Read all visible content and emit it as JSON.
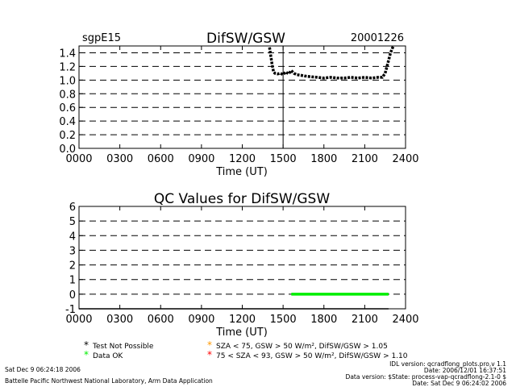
{
  "header": {
    "site": "sgpE15",
    "date": "20001226"
  },
  "chart_data": [
    {
      "type": "line",
      "title": "DifSW/GSW",
      "xlabel": "Time (UT)",
      "ylabel": "",
      "xlim": [
        0,
        2400
      ],
      "ylim": [
        0.0,
        1.5
      ],
      "xticks": [
        "0000",
        "0300",
        "0600",
        "0900",
        "1200",
        "1500",
        "1800",
        "2100",
        "2400"
      ],
      "yticks": [
        "0.0",
        "0.2",
        "0.4",
        "0.6",
        "0.8",
        "1.0",
        "1.2",
        "1.4"
      ],
      "grid": true,
      "vline_x": 1500,
      "series": [
        {
          "color": "#000000",
          "x": [
            1400,
            1410,
            1420,
            1430,
            1440,
            1460,
            1480,
            1500,
            1520,
            1540,
            1560,
            1580,
            1600,
            1630,
            1660,
            1700,
            1750,
            1800,
            1850,
            1900,
            1950,
            2000,
            2050,
            2100,
            2150,
            2200,
            2230,
            2250,
            2270,
            2290,
            2310
          ],
          "y": [
            1.48,
            1.35,
            1.22,
            1.12,
            1.1,
            1.09,
            1.1,
            1.08,
            1.12,
            1.09,
            1.14,
            1.1,
            1.08,
            1.07,
            1.06,
            1.05,
            1.04,
            1.03,
            1.04,
            1.03,
            1.03,
            1.04,
            1.03,
            1.04,
            1.03,
            1.04,
            1.04,
            1.1,
            1.25,
            1.4,
            1.5
          ]
        }
      ]
    },
    {
      "type": "line",
      "title": "QC Values for DifSW/GSW",
      "xlabel": "Time (UT)",
      "ylabel": "",
      "xlim": [
        0,
        2400
      ],
      "ylim": [
        -1,
        6
      ],
      "xticks": [
        "0000",
        "0300",
        "0600",
        "0900",
        "1200",
        "1500",
        "1800",
        "2100",
        "2400"
      ],
      "yticks": [
        "-1",
        "0",
        "1",
        "2",
        "3",
        "4",
        "5",
        "6"
      ],
      "grid": true,
      "series": [
        {
          "color": "#000000",
          "x": [
            0,
            2275
          ],
          "y": [
            -1,
            -1
          ]
        },
        {
          "color": "#00ee00",
          "x": [
            1560,
            2275
          ],
          "y": [
            0,
            0
          ]
        }
      ]
    }
  ],
  "legend": {
    "items": [
      {
        "symbol": "*",
        "color": "#000000",
        "label": "Test Not Possible"
      },
      {
        "symbol": "*",
        "color": "#00ee00",
        "label": "Data OK"
      },
      {
        "symbol": "*",
        "color": "#ff9900",
        "label": "SZA < 75, GSW > 50 W/m², DifSW/GSW > 1.05"
      },
      {
        "symbol": "*",
        "color": "#ff0000",
        "label": "75 < SZA < 93, GSW > 50 W/m², DifSW/GSW > 1.10"
      }
    ]
  },
  "footer": {
    "left_line1": "Sat Dec  9 06:24:18 2006",
    "left_line2": "Battelle Pacific Northwest National Laboratory, Arm Data Application",
    "right_line1": "IDL version: qcradflong_plots.pro,v 1.1",
    "right_line2": "Date: 2006/12/01 16:37:51",
    "right_line3": "Data version: $State: process-vap-qcradflong-2.1-0 $",
    "right_line4": "Date: Sat Dec  9 06:24:02 2006"
  }
}
